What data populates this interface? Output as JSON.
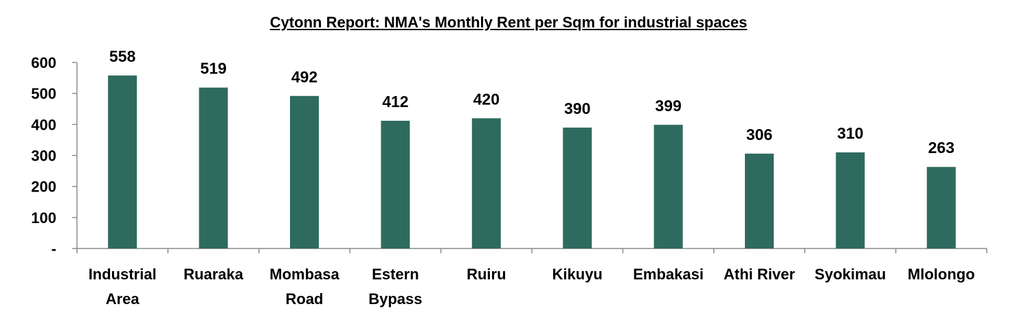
{
  "chart_data": {
    "type": "bar",
    "title": "Cytonn Report: NMA's Monthly Rent per Sqm for industrial spaces",
    "categories": [
      [
        "Industrial",
        "Area"
      ],
      [
        "Ruaraka"
      ],
      [
        "Mombasa",
        "Road"
      ],
      [
        "Estern",
        "Bypass"
      ],
      [
        "Ruiru"
      ],
      [
        "Kikuyu"
      ],
      [
        "Embakasi"
      ],
      [
        "Athi River"
      ],
      [
        "Syokimau"
      ],
      [
        "Mlolongo"
      ]
    ],
    "values": [
      558,
      519,
      492,
      412,
      420,
      390,
      399,
      306,
      310,
      263
    ],
    "data_labels": [
      "558",
      "519",
      "492",
      "412",
      "420",
      "390",
      "399",
      "306",
      "310",
      "263"
    ],
    "ylim": [
      0,
      600
    ],
    "yticks": [
      0,
      100,
      200,
      300,
      400,
      500,
      600
    ],
    "ytick_labels": [
      "-",
      "100",
      "200",
      "300",
      "400",
      "500",
      "600"
    ],
    "xlabel": "",
    "ylabel": "",
    "grid": false,
    "legend": "none",
    "bar_color": "#2e6b5e"
  }
}
